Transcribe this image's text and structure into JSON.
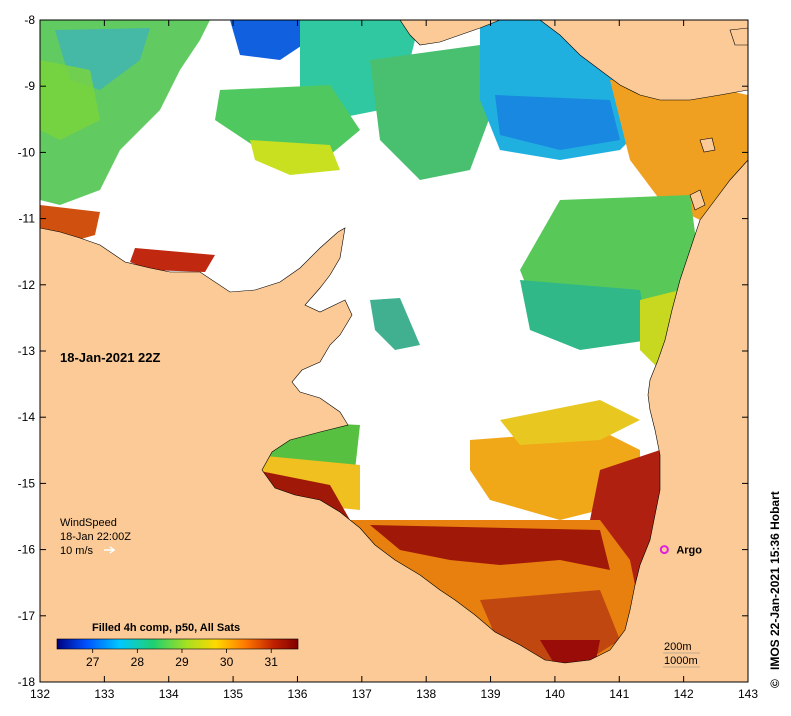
{
  "map": {
    "date_label": "18-Jan-2021 22Z",
    "lon_range": [
      132,
      143
    ],
    "lat_range": [
      -18,
      -8
    ],
    "lon_ticks": [
      "132",
      "133",
      "134",
      "135",
      "136",
      "137",
      "138",
      "139",
      "140",
      "141",
      "142",
      "143"
    ],
    "lat_ticks": [
      "-8",
      "-9",
      "-10",
      "-11",
      "-12",
      "-13",
      "-14",
      "-15",
      "-16",
      "-17",
      "-18"
    ],
    "land_color": "#fbca96",
    "nodata_color": "#ffffff"
  },
  "wind": {
    "title": "WindSpeed",
    "time": "18-Jan 22:00Z",
    "scale": "10 m/s"
  },
  "argo": {
    "label": "Argo",
    "lon": 141.7,
    "lat": -16.0,
    "color": "#e020e0"
  },
  "colorbar": {
    "title": "Filled 4h comp, p50, All Sats",
    "ticks": [
      "27",
      "28",
      "29",
      "30",
      "31"
    ],
    "tick_values": [
      27,
      28,
      29,
      30,
      31
    ],
    "range": [
      26.2,
      31.6
    ],
    "colors": [
      "#00007f",
      "#0050ff",
      "#00c8ff",
      "#20d070",
      "#a8e020",
      "#ffd800",
      "#ff7a00",
      "#c02000",
      "#800000"
    ]
  },
  "contours": {
    "line1": "200m",
    "line2": "1000m"
  },
  "credit": "IMOS 22-Jan-2021 15:36 Hobart",
  "credit_symbol": "©"
}
